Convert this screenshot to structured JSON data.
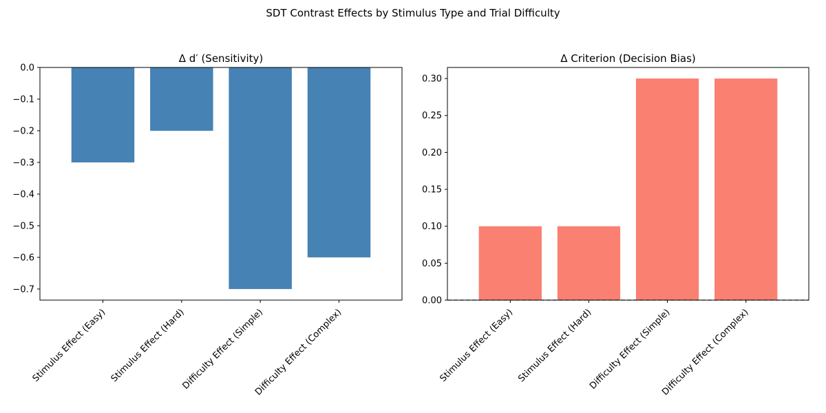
{
  "figure": {
    "suptitle": "SDT Contrast Effects by Stimulus Type and Trial Difficulty"
  },
  "chart_data": [
    {
      "type": "bar",
      "title": "Δ d′ (Sensitivity)",
      "xlabel": "",
      "ylabel": "",
      "categories": [
        "Stimulus Effect (Easy)",
        "Stimulus Effect (Hard)",
        "Difficulty Effect (Simple)",
        "Difficulty Effect (Complex)"
      ],
      "values": [
        -0.3,
        -0.2,
        -0.7,
        -0.6
      ],
      "ylim": [
        -0.735,
        0.0
      ],
      "yticks": [
        0.0,
        -0.1,
        -0.2,
        -0.3,
        -0.4,
        -0.5,
        -0.6,
        -0.7
      ],
      "ytick_labels": [
        "0.0",
        "−0.1",
        "−0.2",
        "−0.3",
        "−0.4",
        "−0.5",
        "−0.6",
        "−0.7"
      ],
      "grid": false,
      "bar_color": "#4682b4",
      "zero_line": false
    },
    {
      "type": "bar",
      "title": "Δ Criterion (Decision Bias)",
      "xlabel": "",
      "ylabel": "",
      "categories": [
        "Stimulus Effect (Easy)",
        "Stimulus Effect (Hard)",
        "Difficulty Effect (Simple)",
        "Difficulty Effect (Complex)"
      ],
      "values": [
        0.1,
        0.1,
        0.3,
        0.3
      ],
      "ylim": [
        0.0,
        0.315
      ],
      "yticks": [
        0.0,
        0.05,
        0.1,
        0.15,
        0.2,
        0.25,
        0.3
      ],
      "ytick_labels": [
        "0.00",
        "0.05",
        "0.10",
        "0.15",
        "0.20",
        "0.25",
        "0.30"
      ],
      "grid": false,
      "bar_color": "#fa8072",
      "zero_line": true,
      "zero_line_color": "#808080"
    }
  ]
}
